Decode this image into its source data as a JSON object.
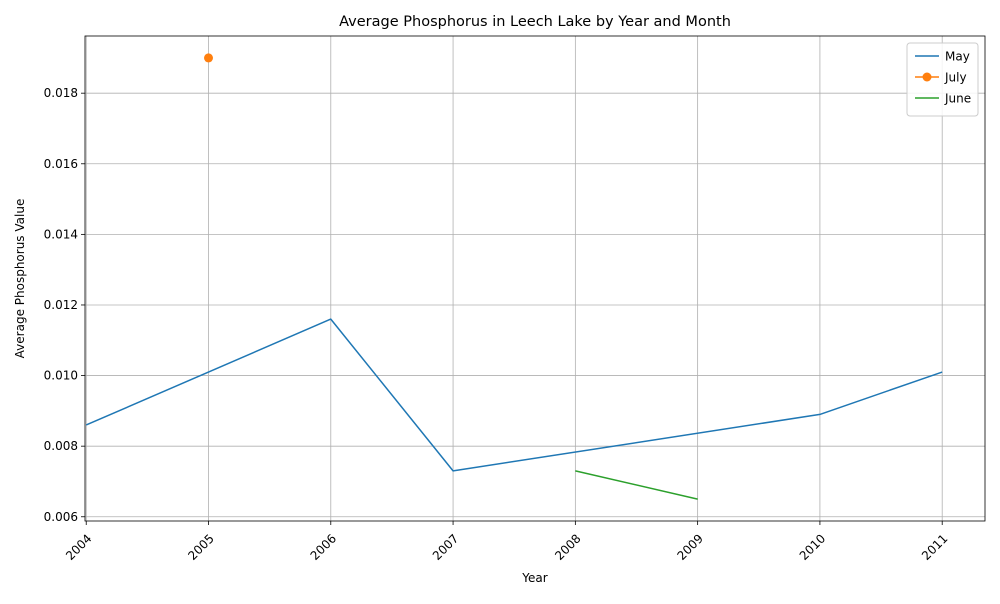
{
  "chart_data": {
    "type": "line",
    "title": "Average Phosphorus in Leech Lake by Year and Month",
    "xlabel": "Year",
    "ylabel": "Average Phosphorus Value",
    "x_ticks": [
      "2004",
      "2005",
      "2006",
      "2007",
      "2008",
      "2009",
      "2010",
      "2011"
    ],
    "y_ticks": [
      "0.006",
      "0.008",
      "0.010",
      "0.012",
      "0.014",
      "0.016",
      "0.018"
    ],
    "xlim": [
      2003.99,
      2011.35
    ],
    "ylim": [
      0.00588,
      0.01962
    ],
    "grid": true,
    "legend_position": "top-right",
    "series": [
      {
        "name": "May",
        "color": "#1f77b4",
        "marker": false,
        "points": [
          [
            2004,
            0.0086
          ],
          [
            2006,
            0.0116
          ],
          [
            2007,
            0.0073
          ],
          [
            2010,
            0.0089
          ],
          [
            2011,
            0.0101
          ]
        ]
      },
      {
        "name": "July",
        "color": "#ff7f0e",
        "marker": true,
        "points": [
          [
            2005,
            0.019
          ]
        ]
      },
      {
        "name": "June",
        "color": "#2ca02c",
        "marker": false,
        "points": [
          [
            2008,
            0.0073
          ],
          [
            2009,
            0.0065
          ]
        ]
      }
    ]
  }
}
